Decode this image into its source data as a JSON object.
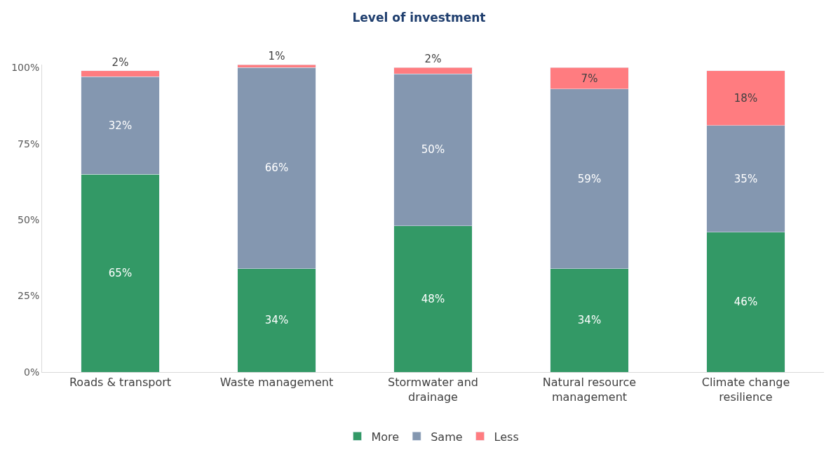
{
  "chart_data": {
    "type": "bar",
    "title": "Level of investment",
    "stacked": true,
    "categories": [
      "Roads & transport",
      "Waste management",
      "Stormwater and drainage",
      "Natural resource management",
      "Climate change resilience"
    ],
    "series": [
      {
        "name": "More",
        "color": "#339966",
        "values": [
          65,
          34,
          48,
          34,
          46
        ],
        "value_labels": [
          "65%",
          "34%",
          "48%",
          "34%",
          "46%"
        ]
      },
      {
        "name": "Same",
        "color": "#8497b0",
        "values": [
          32,
          66,
          50,
          59,
          35
        ],
        "value_labels": [
          "32%",
          "66%",
          "50%",
          "59%",
          "35%"
        ]
      },
      {
        "name": "Less",
        "color": "#ff7c80",
        "values": [
          2,
          1,
          2,
          7,
          18
        ],
        "value_labels": [
          "2%",
          "1%",
          "2%",
          "7%",
          "18%"
        ]
      }
    ],
    "ylim": [
      0,
      101
    ],
    "yticks": [
      {
        "value": 0,
        "label": "0%"
      },
      {
        "value": 25,
        "label": "25%"
      },
      {
        "value": 50,
        "label": "50%"
      },
      {
        "value": 75,
        "label": "75%"
      },
      {
        "value": 100,
        "label": "100%"
      }
    ],
    "legend": "bottom"
  }
}
